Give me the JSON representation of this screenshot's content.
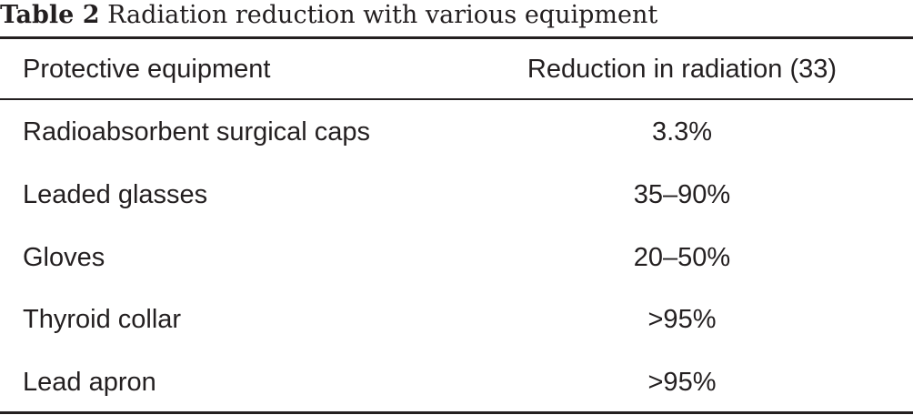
{
  "caption": {
    "label": "Table 2",
    "title": "Radiation reduction with various equipment"
  },
  "table": {
    "headers": [
      "Protective equipment",
      "Reduction in radiation (33)"
    ],
    "rows": [
      [
        "Radioabsorbent surgical caps",
        "3.3%"
      ],
      [
        "Leaded glasses",
        "35–90%"
      ],
      [
        "Gloves",
        "20–50%"
      ],
      [
        "Thyroid collar",
        ">95%"
      ],
      [
        "Lead apron",
        ">95%"
      ]
    ]
  }
}
